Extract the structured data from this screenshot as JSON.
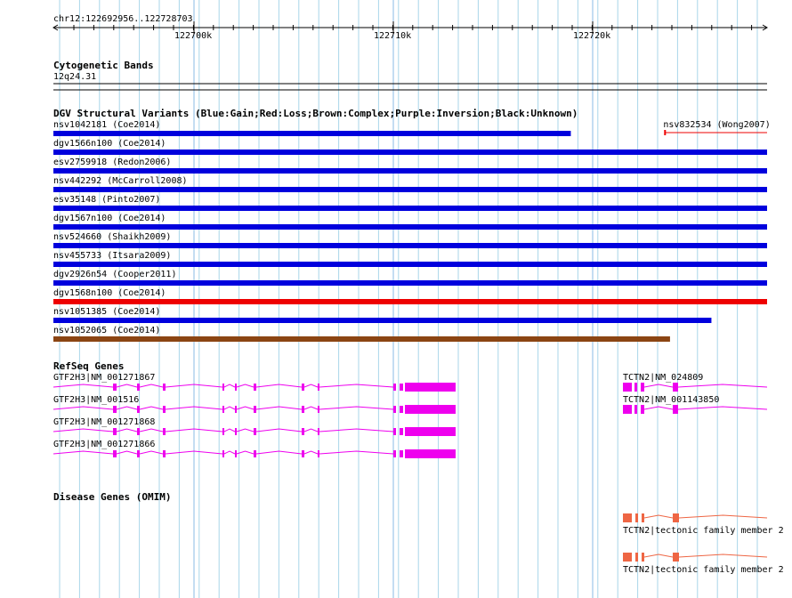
{
  "ruler": {
    "location": "chr12:122692956..122728703",
    "ticks": [
      "122700k",
      "122710k",
      "122720k"
    ]
  },
  "cytoband": {
    "title": "Cytogenetic Bands",
    "band": "12q24.31"
  },
  "dgv": {
    "title": "DGV Structural Variants (Blue:Gain;Red:Loss;Brown:Complex;Purple:Inversion;Black:Unknown)",
    "colors": {
      "gain": "#0000dd",
      "loss": "#ee0000",
      "complex": "#8b4513"
    },
    "variants": [
      {
        "label": "nsv1042181 (Coe2014)",
        "type": "gain",
        "start": 0.0,
        "end": 0.725
      },
      {
        "label": "nsv832534 (Wong2007)",
        "type": "loss",
        "start": 0.857,
        "end": 1.0
      },
      {
        "label": "dgv1566n100 (Coe2014)",
        "type": "gain",
        "start": 0.0,
        "end": 1.0
      },
      {
        "label": "esv2759918 (Redon2006)",
        "type": "gain",
        "start": 0.0,
        "end": 1.0
      },
      {
        "label": "nsv442292 (McCarroll2008)",
        "type": "gain",
        "start": 0.0,
        "end": 1.0
      },
      {
        "label": "esv35148 (Pinto2007)",
        "type": "gain",
        "start": 0.0,
        "end": 1.0
      },
      {
        "label": "dgv1567n100 (Coe2014)",
        "type": "gain",
        "start": 0.0,
        "end": 1.0
      },
      {
        "label": "nsv524660 (Shaikh2009)",
        "type": "gain",
        "start": 0.0,
        "end": 1.0
      },
      {
        "label": "nsv455733 (Itsara2009)",
        "type": "gain",
        "start": 0.0,
        "end": 1.0
      },
      {
        "label": "dgv2926n54 (Cooper2011)",
        "type": "gain",
        "start": 0.0,
        "end": 1.0
      },
      {
        "label": "dgv1568n100 (Coe2014)",
        "type": "loss",
        "start": 0.0,
        "end": 1.0
      },
      {
        "label": "nsv1051385 (Coe2014)",
        "type": "gain",
        "start": 0.0,
        "end": 0.922
      },
      {
        "label": "nsv1052065 (Coe2014)",
        "type": "complex",
        "start": 0.0,
        "end": 0.864
      }
    ]
  },
  "refseq": {
    "title": "RefSeq Genes",
    "color": "#ee00ee",
    "genes": [
      {
        "label": "GTF2H3|NM_001271867",
        "gene": "GTF2H3"
      },
      {
        "label": "GTF2H3|NM_001516",
        "gene": "GTF2H3"
      },
      {
        "label": "GTF2H3|NM_001271868",
        "gene": "GTF2H3"
      },
      {
        "label": "GTF2H3|NM_001271866",
        "gene": "GTF2H3"
      },
      {
        "label": "TCTN2|NM_024809",
        "gene": "TCTN2"
      },
      {
        "label": "TCTN2|NM_001143850",
        "gene": "TCTN2"
      }
    ]
  },
  "disease": {
    "title": "Disease Genes (OMIM)",
    "color": "#ee6644",
    "genes": [
      {
        "label": "TCTN2|tectonic family member 2"
      },
      {
        "label": "TCTN2|tectonic family member 2"
      }
    ]
  }
}
